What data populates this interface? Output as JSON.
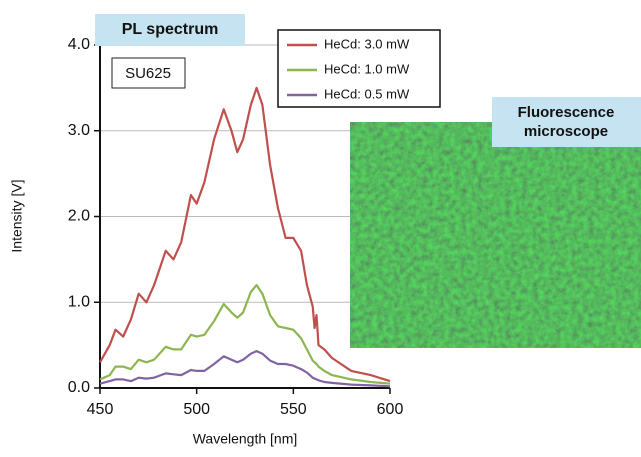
{
  "chart_data": {
    "type": "line",
    "title": "PL spectrum",
    "subtitle": "SU625",
    "x_label": "Wavelength [nm]",
    "y_label": "Intensity [V]",
    "inset_label": [
      "Fluorescence",
      "microscope"
    ],
    "x": [
      450,
      455,
      458,
      462,
      466,
      470,
      474,
      478,
      484,
      488,
      492,
      497,
      500,
      504,
      509,
      514,
      518,
      521,
      524,
      528,
      531,
      534,
      538,
      542,
      546,
      550,
      554,
      557,
      560,
      561,
      562,
      563,
      566,
      570,
      580,
      590,
      600
    ],
    "series": [
      {
        "name": "HeCd: 3.0 mW",
        "color": "#c0504d",
        "values": [
          0.3,
          0.5,
          0.68,
          0.6,
          0.8,
          1.1,
          1.0,
          1.2,
          1.6,
          1.5,
          1.7,
          2.25,
          2.15,
          2.4,
          2.9,
          3.25,
          3.0,
          2.75,
          2.9,
          3.3,
          3.5,
          3.3,
          2.6,
          2.1,
          1.75,
          1.75,
          1.6,
          1.2,
          0.95,
          0.7,
          0.85,
          0.5,
          0.45,
          0.35,
          0.2,
          0.15,
          0.08
        ]
      },
      {
        "name": "HeCd: 1.0 mW",
        "color": "#8db550",
        "values": [
          0.1,
          0.15,
          0.25,
          0.25,
          0.22,
          0.33,
          0.3,
          0.33,
          0.48,
          0.45,
          0.45,
          0.62,
          0.6,
          0.62,
          0.78,
          0.98,
          0.88,
          0.82,
          0.88,
          1.12,
          1.2,
          1.1,
          0.85,
          0.72,
          0.7,
          0.68,
          0.58,
          0.45,
          0.32,
          0.3,
          0.28,
          0.25,
          0.2,
          0.15,
          0.1,
          0.07,
          0.05
        ]
      },
      {
        "name": "HeCd: 0.5 mW",
        "color": "#8064a2",
        "values": [
          0.05,
          0.08,
          0.1,
          0.1,
          0.08,
          0.12,
          0.11,
          0.12,
          0.17,
          0.16,
          0.15,
          0.21,
          0.2,
          0.2,
          0.28,
          0.37,
          0.33,
          0.3,
          0.33,
          0.4,
          0.43,
          0.4,
          0.32,
          0.28,
          0.28,
          0.26,
          0.22,
          0.18,
          0.12,
          0.11,
          0.1,
          0.09,
          0.07,
          0.06,
          0.04,
          0.03,
          0.02
        ]
      }
    ],
    "xlim": [
      450,
      600
    ],
    "xticks": [
      450,
      500,
      550,
      600
    ],
    "ylim": [
      0,
      4
    ],
    "yticks": [
      {
        "value": 0,
        "label": "0.0"
      },
      {
        "value": 1,
        "label": "1.0"
      },
      {
        "value": 2,
        "label": "2.0"
      },
      {
        "value": 3,
        "label": "3.0"
      },
      {
        "value": 4,
        "label": "4.0"
      }
    ],
    "grid": true
  }
}
